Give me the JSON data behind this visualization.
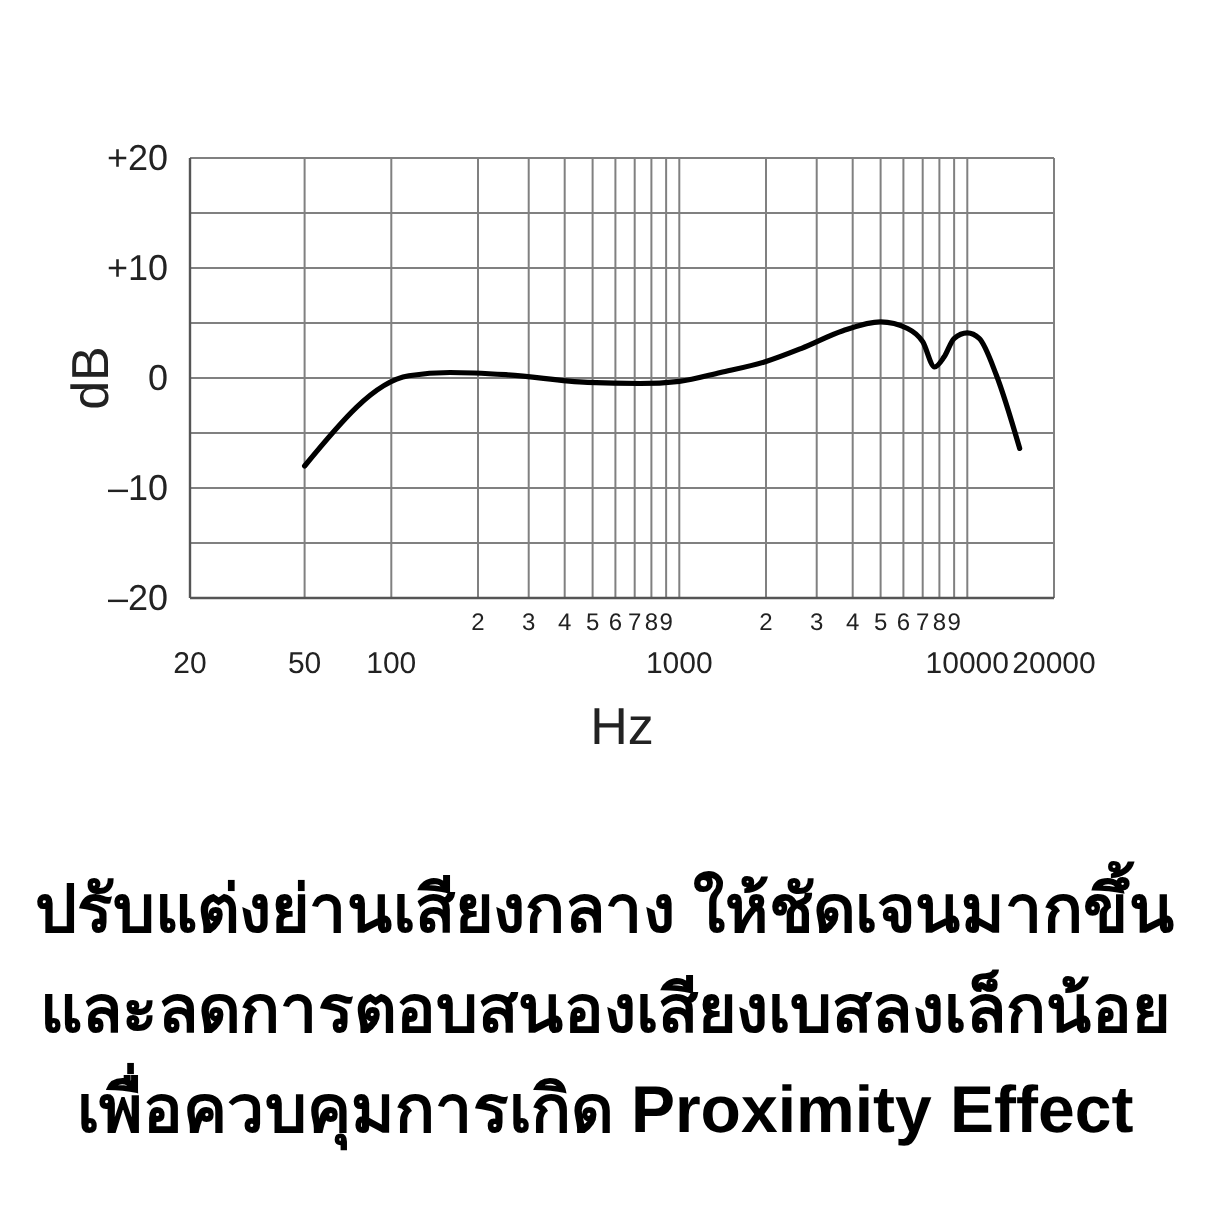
{
  "chart_data": {
    "type": "line",
    "xlabel": "Hz",
    "ylabel": "dB",
    "x": [
      50,
      115,
      160,
      250,
      480,
      730,
      1000,
      1390,
      2000,
      2660,
      3700,
      5000,
      6200,
      7000,
      7700,
      8300,
      9000,
      10000,
      11000,
      12600,
      15200
    ],
    "series": [
      {
        "color": "#000000",
        "values": [
          -8,
          0.2,
          0.5,
          0.3,
          -0.4,
          -0.5,
          -0.3,
          0.5,
          1.5,
          2.7,
          4.3,
          5.1,
          4.5,
          3.3,
          1.0,
          1.9,
          3.6,
          4.1,
          3.6,
          0.3,
          -6.4
        ]
      }
    ],
    "xlim": [
      20,
      20000
    ],
    "ylim": [
      -20,
      20
    ],
    "xticks": [
      20,
      50,
      100,
      {
        "value": 200,
        "label": null
      },
      {
        "value": 300,
        "label": null
      },
      {
        "value": 400,
        "label": null
      },
      {
        "value": 500,
        "label": null
      },
      {
        "value": 600,
        "label": null
      },
      {
        "value": 700,
        "label": null
      },
      {
        "value": 800,
        "label": null
      },
      {
        "value": 900,
        "label": null
      },
      1000,
      {
        "value": 2000,
        "label": null
      },
      {
        "value": 3000,
        "label": null
      },
      {
        "value": 4000,
        "label": null
      },
      {
        "value": 5000,
        "label": null
      },
      {
        "value": 6000,
        "label": null
      },
      {
        "value": 7000,
        "label": null
      },
      {
        "value": 8000,
        "label": null
      },
      {
        "value": 9000,
        "label": null
      },
      10000,
      20000
    ],
    "yticks": [
      {
        "value": -20,
        "label": "–20"
      },
      {
        "value": -15,
        "label": null
      },
      {
        "value": -10,
        "label": "–10"
      },
      {
        "value": -5,
        "label": null
      },
      0,
      {
        "value": 5,
        "label": null
      },
      {
        "value": 10,
        "label": "+10"
      },
      {
        "value": 15,
        "label": null
      },
      {
        "value": 20,
        "label": "+20"
      }
    ],
    "log": "x",
    "grid": true,
    "marker": "none",
    "line_style": "solid",
    "annotations": [
      "2",
      "3",
      "4",
      "5",
      "6",
      "7",
      "8",
      "9",
      "2",
      "3",
      "4",
      "5",
      "6",
      "7",
      "8",
      "9",
      "ปรับแต่งย่านเสียงกลาง ให้ชัดเจนมากขึ้น",
      "และลดการตอบสนองเสียงเบสลงเล็กน้อย",
      "เพื่อควบคุมการเกิด Proximity Effect"
    ]
  }
}
